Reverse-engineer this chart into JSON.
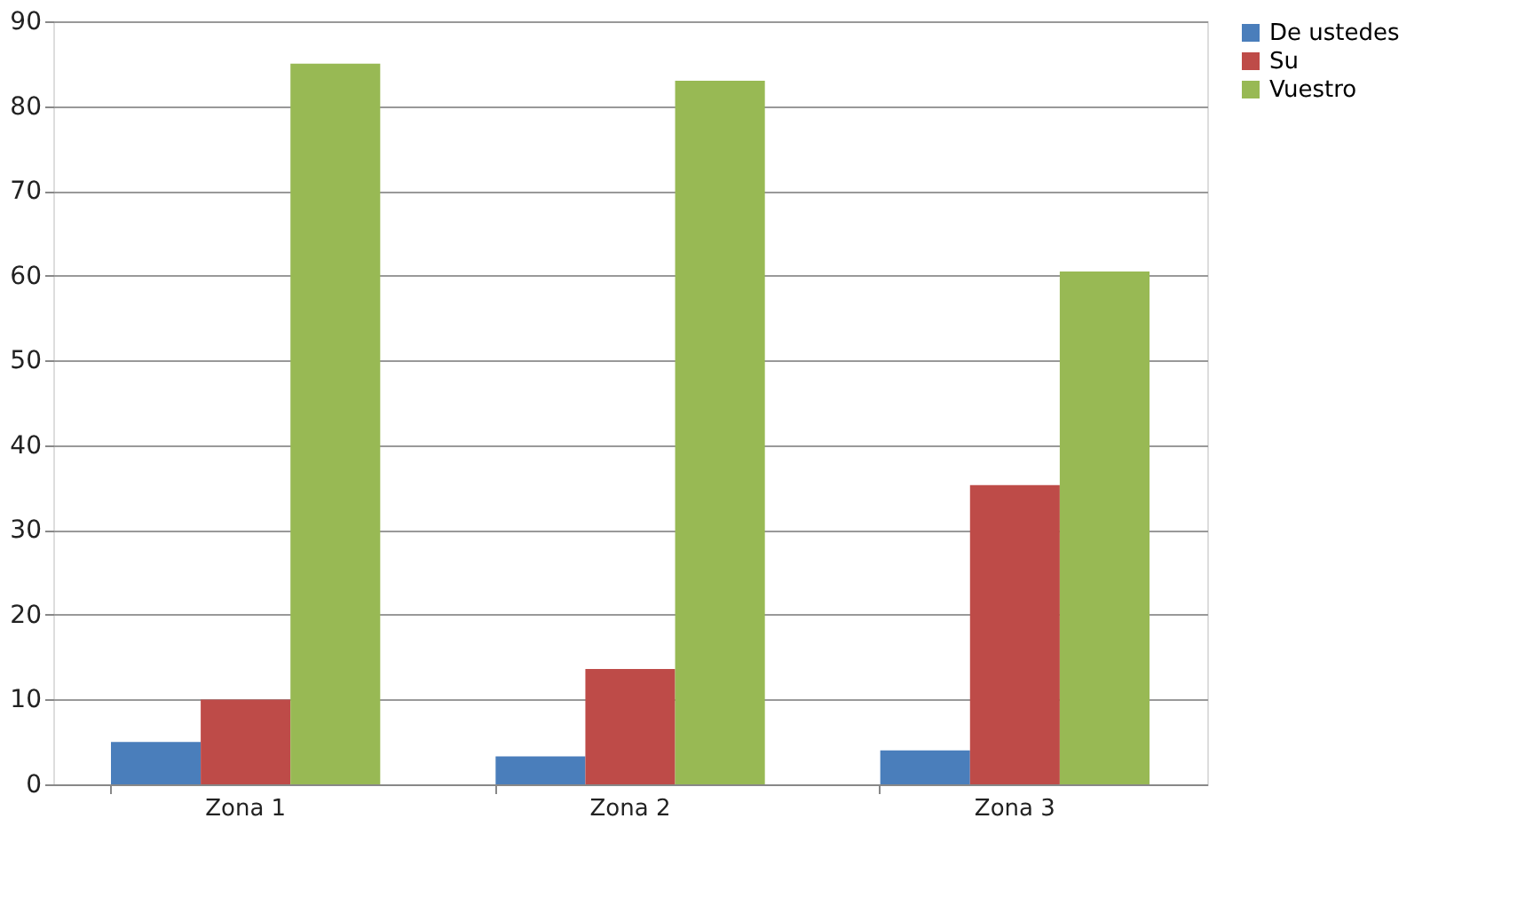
{
  "chart_data": {
    "type": "bar",
    "categories": [
      "Zona 1",
      "Zona 2",
      "Zona 3"
    ],
    "series": [
      {
        "name": "De ustedes",
        "color": "#4a7ebb",
        "values": [
          5,
          3.3,
          4
        ]
      },
      {
        "name": "Su",
        "color": "#be4b48",
        "values": [
          10,
          13.6,
          35.3
        ]
      },
      {
        "name": "Vuestro",
        "color": "#98b954",
        "values": [
          85,
          83,
          60.5
        ]
      }
    ],
    "ylim": [
      0,
      90
    ],
    "yticks": [
      0,
      10,
      20,
      30,
      40,
      50,
      60,
      70,
      80,
      90
    ],
    "grid": "y",
    "legend": "right"
  }
}
